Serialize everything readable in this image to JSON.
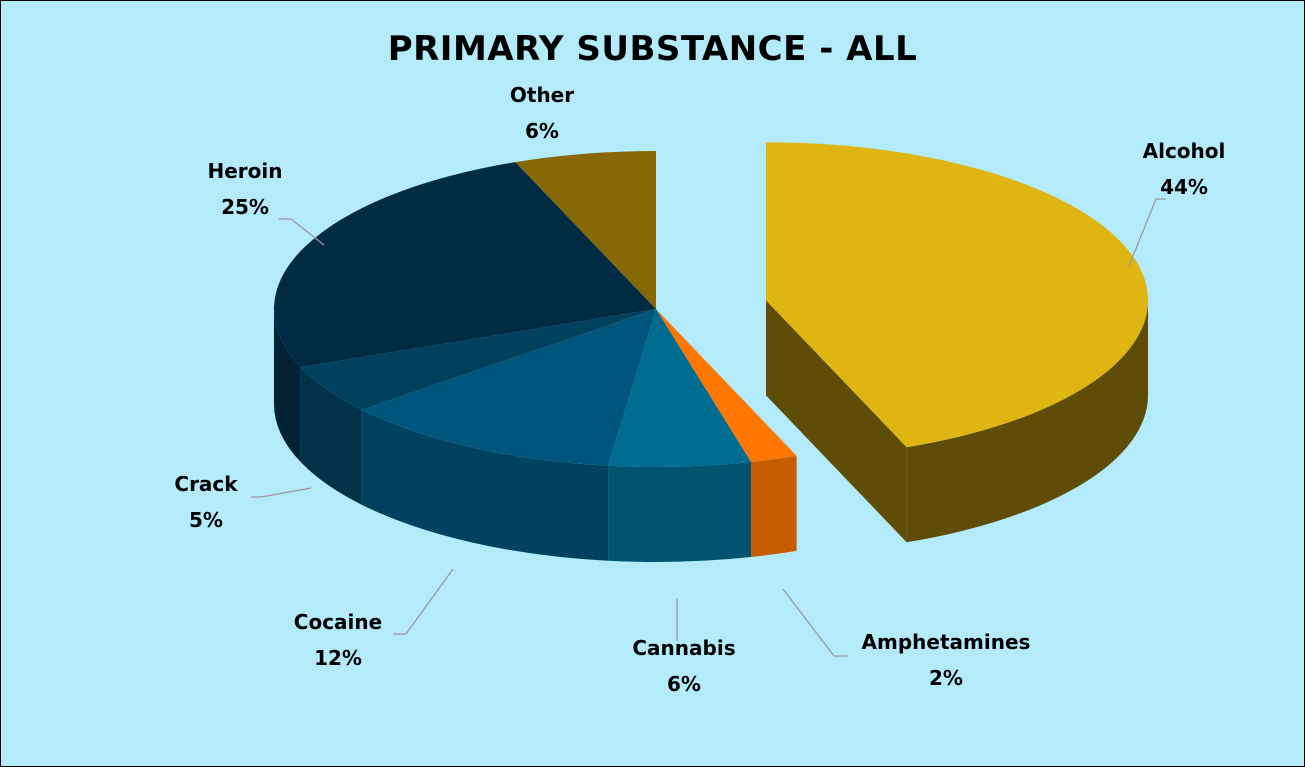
{
  "chart_data": {
    "type": "pie",
    "title": "PRIMARY SUBSTANCE - ALL",
    "background": "#b3ebfb",
    "slices": [
      {
        "label": "Alcohol",
        "value": 44,
        "value_label": "44%",
        "color": "#dfb511"
      },
      {
        "label": "Amphetamines",
        "value": 2,
        "value_label": "2%",
        "color": "#ff7600"
      },
      {
        "label": "Cannabis",
        "value": 6,
        "value_label": "6%",
        "color": "#006c8f"
      },
      {
        "label": "Cocaine",
        "value": 12,
        "value_label": "12%",
        "color": "#00557a"
      },
      {
        "label": "Crack",
        "value": 5,
        "value_label": "5%",
        "color": "#00415e"
      },
      {
        "label": "Heroin",
        "value": 25,
        "value_label": "25%",
        "color": "#002b42"
      },
      {
        "label": "Other",
        "value": 6,
        "value_label": "6%",
        "color": "#866807"
      }
    ],
    "exploded": "Alcohol",
    "legend": "none"
  }
}
